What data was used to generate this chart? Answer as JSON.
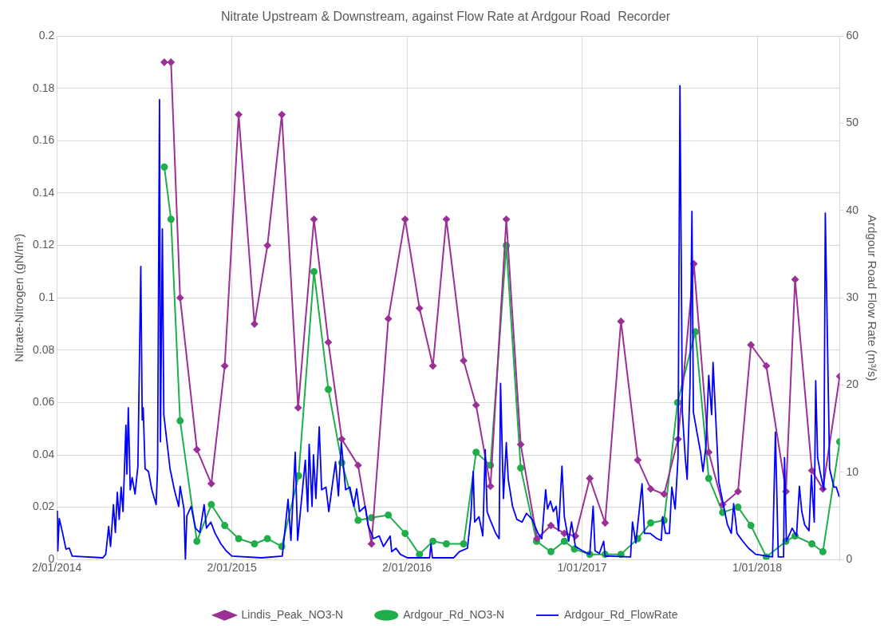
{
  "chart_data": {
    "type": "line",
    "title": "Nitrate Upstream & Downstream, against Flow Rate at Ardgour Road  Recorder",
    "ylabel": "Nitrate-Nitrogen (gN/m³)",
    "y2label": "Ardgour Road Flow Rate (m³/s)",
    "xlim": [
      "2014-01-02",
      "2018-06-22"
    ],
    "xticks": [
      {
        "value": "2014-01-02",
        "label": "2/01/2014"
      },
      {
        "value": "2015-01-02",
        "label": "2/01/2015"
      },
      {
        "value": "2016-01-02",
        "label": "2/01/2016"
      },
      {
        "value": "2017-01-01",
        "label": "1/01/2017"
      },
      {
        "value": "2018-01-01",
        "label": "1/01/2018"
      }
    ],
    "ylim": [
      0,
      0.2
    ],
    "yticks": [
      0,
      0.02,
      0.04,
      0.06,
      0.08,
      0.1,
      0.12,
      0.14,
      0.16,
      0.18,
      0.2
    ],
    "y2lim": [
      0,
      60
    ],
    "y2ticks": [
      0,
      10,
      20,
      30,
      40,
      50,
      60
    ],
    "grid": true,
    "legend": "bottom",
    "line_style": "solid",
    "series": [
      {
        "name": "Lindis_Peak_NO3-N",
        "color": "#9b3096",
        "marker": "diamond",
        "x": [
          "2014-08-14",
          "2014-08-28",
          "2014-09-16",
          "2014-10-21",
          "2014-11-20",
          "2014-12-18",
          "2015-01-16",
          "2015-02-18",
          "2015-03-17",
          "2015-04-16",
          "2015-05-20",
          "2015-06-22",
          "2015-07-22",
          "2015-08-19",
          "2015-09-22",
          "2015-10-20",
          "2015-11-24",
          "2015-12-29",
          "2016-01-28",
          "2016-02-25",
          "2016-03-24",
          "2016-04-29",
          "2016-05-25",
          "2016-06-24",
          "2016-07-27",
          "2016-08-26",
          "2016-09-29",
          "2016-10-28",
          "2016-11-25",
          "2016-12-18",
          "2017-01-17",
          "2017-02-18",
          "2017-03-23",
          "2017-04-27",
          "2017-05-24",
          "2017-06-21",
          "2017-07-20",
          "2017-08-22",
          "2017-09-22",
          "2017-10-21",
          "2017-11-22",
          "2017-12-19",
          "2018-01-20",
          "2018-03-02",
          "2018-03-21",
          "2018-04-25",
          "2018-05-18",
          "2018-06-22"
        ],
        "values": [
          0.19,
          0.19,
          0.1,
          0.042,
          0.029,
          0.074,
          0.17,
          0.09,
          0.12,
          0.17,
          0.058,
          0.13,
          0.083,
          0.046,
          0.036,
          0.006,
          0.092,
          0.13,
          0.096,
          0.074,
          0.13,
          0.076,
          0.059,
          0.028,
          0.13,
          0.044,
          0.008,
          0.013,
          0.01,
          0.009,
          0.031,
          0.014,
          0.091,
          0.038,
          0.027,
          0.025,
          0.046,
          0.113,
          0.041,
          0.021,
          0.026,
          0.082,
          0.074,
          0.026,
          0.107,
          0.034,
          0.027,
          0.07
        ]
      },
      {
        "name": "Ardgour_Rd_NO3-N",
        "color": "#1fae4a",
        "marker": "circle",
        "x": [
          "2014-08-14",
          "2014-08-28",
          "2014-09-16",
          "2014-10-21",
          "2014-11-20",
          "2014-12-18",
          "2015-01-16",
          "2015-02-18",
          "2015-03-17",
          "2015-04-16",
          "2015-05-21",
          "2015-06-22",
          "2015-07-22",
          "2015-08-19",
          "2015-09-22",
          "2015-10-20",
          "2015-11-24",
          "2015-12-29",
          "2016-01-28",
          "2016-02-25",
          "2016-03-24",
          "2016-04-29",
          "2016-05-25",
          "2016-06-24",
          "2016-07-27",
          "2016-08-26",
          "2016-09-28",
          "2016-10-28",
          "2016-11-25",
          "2016-12-16",
          "2017-01-17",
          "2017-02-18",
          "2017-03-23",
          "2017-04-27",
          "2017-05-24",
          "2017-06-21",
          "2017-07-19",
          "2017-08-25",
          "2017-09-22",
          "2017-10-21",
          "2017-11-22",
          "2017-12-19",
          "2018-01-20",
          "2018-03-02",
          "2018-03-21",
          "2018-04-25",
          "2018-05-18",
          "2018-06-22"
        ],
        "values": [
          0.15,
          0.13,
          0.053,
          0.007,
          0.021,
          0.013,
          0.008,
          0.006,
          0.008,
          0.005,
          0.032,
          0.11,
          0.065,
          0.037,
          0.015,
          0.016,
          0.017,
          0.01,
          0.002,
          0.007,
          0.006,
          0.006,
          0.041,
          0.036,
          0.12,
          0.035,
          0.007,
          0.003,
          0.007,
          0.004,
          0.002,
          0.002,
          0.002,
          0.008,
          0.014,
          0.015,
          0.06,
          0.087,
          0.031,
          0.018,
          0.02,
          0.013,
          0.001,
          0.007,
          0.009,
          0.006,
          0.003,
          0.045
        ]
      },
      {
        "name": "Ardgour_Rd_FlowRate",
        "color": "#0000ff",
        "marker": "none",
        "axis": "y2",
        "x": [
          "2014-01-03",
          "2014-01-04",
          "2014-01-07",
          "2014-01-13",
          "2014-01-21",
          "2014-01-28",
          "2014-02-03",
          "2014-04-08",
          "2014-04-14",
          "2014-04-20",
          "2014-04-24",
          "2014-04-30",
          "2014-05-04",
          "2014-05-08",
          "2014-05-12",
          "2014-05-16",
          "2014-05-20",
          "2014-05-26",
          "2014-05-28",
          "2014-05-31",
          "2014-06-04",
          "2014-06-08",
          "2014-06-14",
          "2014-06-20",
          "2014-06-26",
          "2014-06-29",
          "2014-07-01",
          "2014-07-05",
          "2014-07-12",
          "2014-07-19",
          "2014-07-28",
          "2014-07-31",
          "2014-08-04",
          "2014-08-06",
          "2014-08-10",
          "2014-08-13",
          "2014-08-26",
          "2014-09-04",
          "2014-09-13",
          "2014-09-16",
          "2014-09-24",
          "2014-09-27",
          "2014-09-30",
          "2014-10-09",
          "2014-10-18",
          "2014-10-27",
          "2014-11-05",
          "2014-11-10",
          "2014-11-19",
          "2014-11-28",
          "2014-12-10",
          "2014-12-21",
          "2015-01-02",
          "2015-03-05",
          "2015-04-17",
          "2015-04-29",
          "2015-05-05",
          "2015-05-14",
          "2015-05-19",
          "2015-06-04",
          "2015-06-09",
          "2015-06-12",
          "2015-06-18",
          "2015-06-21",
          "2015-06-26",
          "2015-07-03",
          "2015-07-08",
          "2015-07-17",
          "2015-07-23",
          "2015-07-29",
          "2015-08-06",
          "2015-08-12",
          "2015-08-18",
          "2015-08-27",
          "2015-09-05",
          "2015-09-13",
          "2015-09-19",
          "2015-09-25",
          "2015-10-07",
          "2015-10-13",
          "2015-10-24",
          "2015-11-05",
          "2015-11-14",
          "2015-11-28",
          "2015-12-01",
          "2015-12-10",
          "2015-12-19",
          "2016-01-03",
          "2016-02-18",
          "2016-02-21",
          "2016-02-24",
          "2016-04-08",
          "2016-04-20",
          "2016-05-07",
          "2016-05-14",
          "2016-05-19",
          "2016-05-22",
          "2016-05-31",
          "2016-06-08",
          "2016-06-13",
          "2016-06-17",
          "2016-06-23",
          "2016-07-05",
          "2016-07-12",
          "2016-07-15",
          "2016-07-21",
          "2016-07-27",
          "2016-07-31",
          "2016-08-09",
          "2016-08-18",
          "2016-08-29",
          "2016-09-07",
          "2016-09-19",
          "2016-10-01",
          "2016-10-09",
          "2016-10-17",
          "2016-10-21",
          "2016-10-27",
          "2016-11-02",
          "2016-11-08",
          "2016-11-13",
          "2016-11-20",
          "2016-11-25",
          "2016-12-04",
          "2016-12-10",
          "2016-12-18",
          "2017-01-02",
          "2017-01-17",
          "2017-01-24",
          "2017-01-28",
          "2017-02-06",
          "2017-02-15",
          "2017-02-18",
          "2017-04-12",
          "2017-04-16",
          "2017-04-23",
          "2017-05-06",
          "2017-05-11",
          "2017-05-23",
          "2017-06-06",
          "2017-06-15",
          "2017-06-18",
          "2017-06-24",
          "2017-07-02",
          "2017-07-07",
          "2017-07-14",
          "2017-07-20",
          "2017-07-24",
          "2017-07-29",
          "2017-08-04",
          "2017-08-08",
          "2017-08-14",
          "2017-08-18",
          "2017-08-21",
          "2017-08-30",
          "2017-09-05",
          "2017-09-10",
          "2017-09-16",
          "2017-09-22",
          "2017-09-28",
          "2017-10-01",
          "2017-10-13",
          "2017-10-22",
          "2017-10-31",
          "2017-11-08",
          "2017-11-13",
          "2017-11-20",
          "2017-12-02",
          "2017-12-14",
          "2017-12-29",
          "2018-02-02",
          "2018-02-08",
          "2018-02-14",
          "2018-02-25",
          "2018-02-27",
          "2018-03-03",
          "2018-03-15",
          "2018-03-24",
          "2018-03-30",
          "2018-04-04",
          "2018-04-10",
          "2018-04-19",
          "2018-04-24",
          "2018-04-30",
          "2018-05-03",
          "2018-05-07",
          "2018-05-13",
          "2018-05-20",
          "2018-05-23",
          "2018-06-01",
          "2018-06-10",
          "2018-06-15",
          "2018-06-21"
        ],
        "values": [
          5.6,
          1.0,
          4.7,
          3.3,
          1.2,
          1.3,
          0.4,
          0.2,
          0.6,
          3.8,
          1.5,
          6.3,
          3.1,
          7.7,
          4.6,
          8.3,
          5.5,
          15.4,
          9.8,
          17.4,
          8.0,
          9.4,
          7.5,
          10.7,
          33.6,
          16,
          17.4,
          10.4,
          10.1,
          8,
          6.3,
          10.4,
          52.7,
          13.5,
          37.9,
          16.6,
          10.4,
          8,
          6.1,
          8.4,
          5.8,
          0,
          5.0,
          6.1,
          3.6,
          3.1,
          6.3,
          3.6,
          4.3,
          3.0,
          1.8,
          1.0,
          0.4,
          0.2,
          0.4,
          6.9,
          2.2,
          12.3,
          2.2,
          11.4,
          5.5,
          13.2,
          6.1,
          12,
          7,
          15.2,
          8,
          8.3,
          5.5,
          8,
          11.2,
          7.3,
          13.4,
          8,
          8.3,
          6.1,
          8.1,
          5.5,
          6.1,
          3.9,
          2.4,
          2.7,
          1.5,
          2.7,
          0.9,
          1.3,
          0.6,
          0.2,
          0.2,
          1.8,
          0.2,
          0.2,
          0.9,
          1.3,
          4.9,
          10.1,
          4.3,
          4.9,
          2.7,
          12.6,
          5.5,
          4.6,
          3.0,
          2.4,
          20.2,
          7,
          13.4,
          9.2,
          6.1,
          4.6,
          4.3,
          5.3,
          4.6,
          3.0,
          2.4,
          8,
          5.8,
          6.7,
          5.5,
          6.1,
          3.3,
          10.7,
          4.9,
          2.1,
          4.3,
          1.5,
          1.0,
          0.6,
          6.1,
          1.0,
          0.7,
          2.1,
          0.4,
          0.3,
          4.3,
          1.9,
          8.7,
          3.0,
          3.0,
          2.4,
          2.2,
          4.9,
          3.0,
          3.0,
          8.3,
          5.8,
          11.7,
          54.3,
          16.9,
          11.7,
          9.2,
          20,
          39.9,
          16.9,
          14.1,
          12.3,
          10.1,
          12.9,
          21.1,
          16.6,
          22.6,
          8.9,
          6.4,
          4.0,
          3.0,
          6.4,
          3.0,
          2.1,
          1.3,
          0.6,
          0.3,
          14.6,
          0.3,
          0.3,
          11.7,
          2.1,
          3.6,
          2.7,
          8.4,
          5.5,
          4.0,
          3.3,
          9.7,
          4.3,
          20.5,
          11.7,
          9.8,
          8,
          39.7,
          10.4,
          8.3,
          8.3,
          7.2
        ]
      }
    ]
  }
}
